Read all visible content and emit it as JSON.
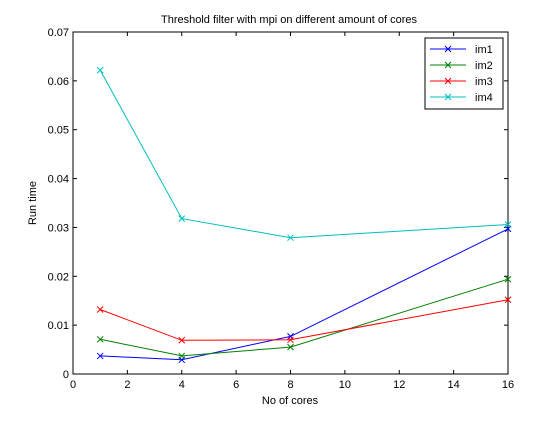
{
  "chart_data": {
    "type": "line",
    "title": "Threshold filter with mpi on different amount of cores",
    "xlabel": "No of cores",
    "ylabel": "Run time",
    "xlim": [
      0,
      16
    ],
    "ylim": [
      0,
      0.07
    ],
    "xticks": [
      0,
      2,
      4,
      6,
      8,
      10,
      12,
      14,
      16
    ],
    "yticks": [
      0,
      0.01,
      0.02,
      0.03,
      0.04,
      0.05,
      0.06,
      0.07
    ],
    "xtick_labels": [
      "0",
      "2",
      "4",
      "6",
      "8",
      "10",
      "12",
      "14",
      "16"
    ],
    "ytick_labels": [
      "0",
      "0.01",
      "0.02",
      "0.03",
      "0.04",
      "0.05",
      "0.06",
      "0.07"
    ],
    "grid": false,
    "legend_position": "top-right",
    "marker": "x",
    "x": [
      1,
      4,
      8,
      16
    ],
    "series": [
      {
        "name": "im1",
        "color": "#0000ff",
        "values": [
          0.0037,
          0.0029,
          0.0077,
          0.0297
        ]
      },
      {
        "name": "im2",
        "color": "#008000",
        "values": [
          0.0071,
          0.0037,
          0.0055,
          0.0194
        ]
      },
      {
        "name": "im3",
        "color": "#ff0000",
        "values": [
          0.0132,
          0.0069,
          0.007,
          0.0152
        ]
      },
      {
        "name": "im4",
        "color": "#00bfbf",
        "values": [
          0.0622,
          0.0318,
          0.0279,
          0.0306
        ]
      }
    ]
  }
}
